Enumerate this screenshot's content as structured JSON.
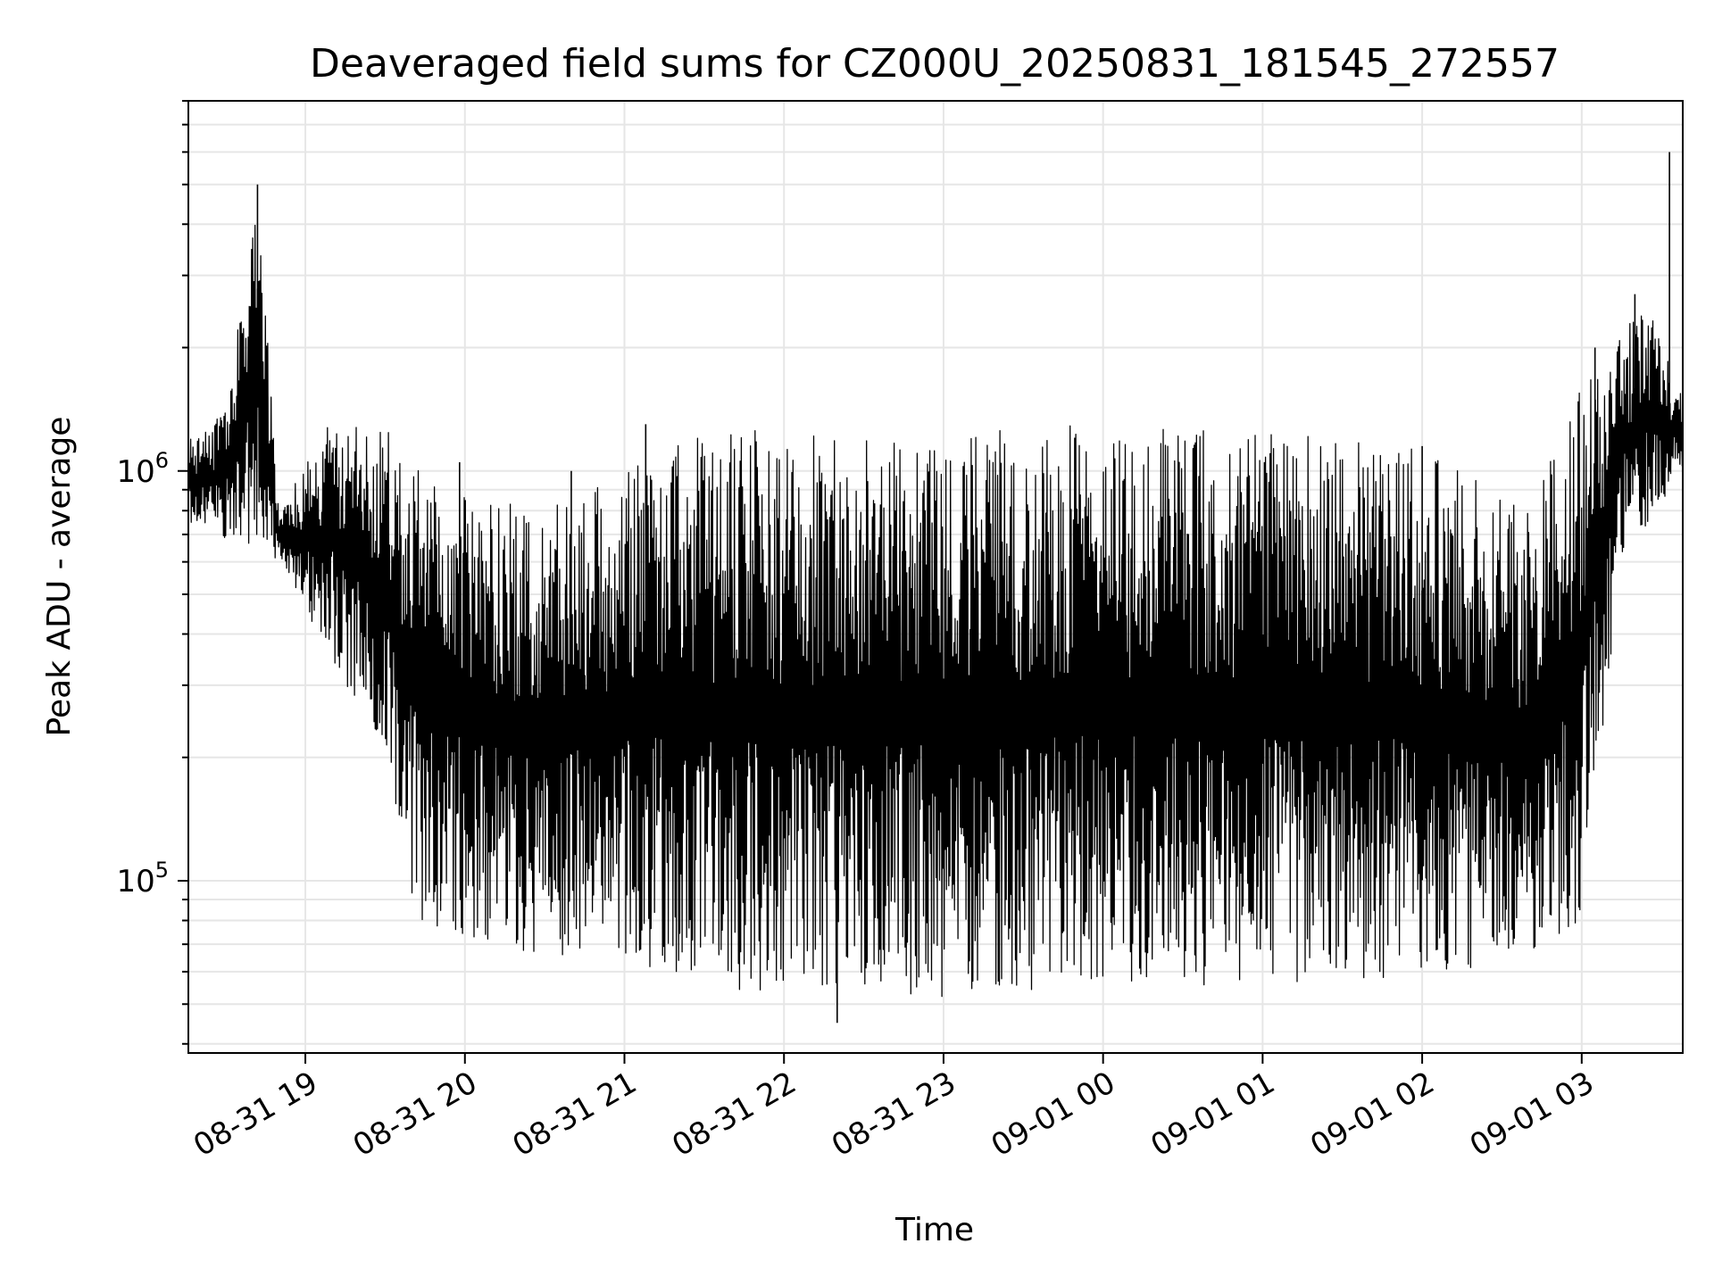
{
  "chart_data": {
    "type": "line",
    "title": "Deaveraged field sums for CZ000U_20250831_181545_272557",
    "xlabel": "Time",
    "ylabel": "Peak ADU - average",
    "y_scale": "log",
    "ylim": [
      38000,
      8000000
    ],
    "xlim": [
      "2025-08-31 18:16",
      "2025-09-01 03:38"
    ],
    "grid": true,
    "color": "#000000",
    "x_ticks": [
      {
        "t": "2025-08-31 19:00",
        "label": "08-31 19"
      },
      {
        "t": "2025-08-31 20:00",
        "label": "08-31 20"
      },
      {
        "t": "2025-08-31 21:00",
        "label": "08-31 21"
      },
      {
        "t": "2025-08-31 22:00",
        "label": "08-31 22"
      },
      {
        "t": "2025-08-31 23:00",
        "label": "08-31 23"
      },
      {
        "t": "2025-09-01 00:00",
        "label": "09-01 00"
      },
      {
        "t": "2025-09-01 01:00",
        "label": "09-01 01"
      },
      {
        "t": "2025-09-01 02:00",
        "label": "09-01 02"
      },
      {
        "t": "2025-09-01 03:00",
        "label": "09-01 03"
      }
    ],
    "y_ticks": [
      {
        "value": 100000,
        "base": "10",
        "exp": "5"
      },
      {
        "value": 1000000,
        "base": "10",
        "exp": "6"
      }
    ],
    "series": [
      {
        "upper_envelope": [
          {
            "t": "2025-08-31 18:16",
            "y": 1200000
          },
          {
            "t": "2025-08-31 18:30",
            "y": 1400000
          },
          {
            "t": "2025-08-31 18:42",
            "y": 5000000
          },
          {
            "t": "2025-08-31 18:50",
            "y": 800000
          },
          {
            "t": "2025-08-31 19:10",
            "y": 1350000
          },
          {
            "t": "2025-08-31 19:40",
            "y": 1200000
          },
          {
            "t": "2025-08-31 20:00",
            "y": 900000
          },
          {
            "t": "2025-08-31 20:30",
            "y": 800000
          },
          {
            "t": "2025-08-31 21:00",
            "y": 1000000
          },
          {
            "t": "2025-08-31 21:20",
            "y": 1300000
          },
          {
            "t": "2025-08-31 22:00",
            "y": 1250000
          },
          {
            "t": "2025-08-31 23:00",
            "y": 1250000
          },
          {
            "t": "2025-09-01 00:00",
            "y": 1300000
          },
          {
            "t": "2025-09-01 01:00",
            "y": 1250000
          },
          {
            "t": "2025-09-01 01:40",
            "y": 1200000
          },
          {
            "t": "2025-09-01 02:00",
            "y": 1150000
          },
          {
            "t": "2025-09-01 02:40",
            "y": 800000
          },
          {
            "t": "2025-09-01 03:05",
            "y": 2000000
          },
          {
            "t": "2025-09-01 03:25",
            "y": 2500000
          },
          {
            "t": "2025-09-01 03:38",
            "y": 1500000
          }
        ],
        "lower_envelope": [
          {
            "t": "2025-08-31 18:16",
            "y": 750000
          },
          {
            "t": "2025-08-31 18:50",
            "y": 600000
          },
          {
            "t": "2025-08-31 19:10",
            "y": 350000
          },
          {
            "t": "2025-08-31 19:30",
            "y": 200000
          },
          {
            "t": "2025-08-31 19:40",
            "y": 80000
          },
          {
            "t": "2025-08-31 20:30",
            "y": 65000
          },
          {
            "t": "2025-08-31 21:00",
            "y": 65000
          },
          {
            "t": "2025-08-31 21:30",
            "y": 52000
          },
          {
            "t": "2025-08-31 22:00",
            "y": 52000
          },
          {
            "t": "2025-08-31 23:00",
            "y": 52000
          },
          {
            "t": "2025-09-01 00:00",
            "y": 55000
          },
          {
            "t": "2025-09-01 01:00",
            "y": 55000
          },
          {
            "t": "2025-09-01 02:00",
            "y": 58000
          },
          {
            "t": "2025-09-01 02:40",
            "y": 65000
          },
          {
            "t": "2025-09-01 03:00",
            "y": 80000
          },
          {
            "t": "2025-09-01 03:15",
            "y": 600000
          },
          {
            "t": "2025-09-01 03:38",
            "y": 1000000
          }
        ],
        "spikes": [
          {
            "t": "2025-08-31 18:40",
            "y": 2500000
          },
          {
            "t": "2025-08-31 18:42",
            "y": 5000000
          },
          {
            "t": "2025-08-31 19:58",
            "y": 1050000
          },
          {
            "t": "2025-08-31 20:40",
            "y": 1000000
          },
          {
            "t": "2025-08-31 21:08",
            "y": 1300000
          },
          {
            "t": "2025-08-31 22:20",
            "y": 45000
          },
          {
            "t": "2025-09-01 02:00",
            "y": 1150000
          },
          {
            "t": "2025-09-01 03:05",
            "y": 2000000
          },
          {
            "t": "2025-09-01 03:20",
            "y": 2700000
          },
          {
            "t": "2025-09-01 03:33",
            "y": 6000000
          }
        ]
      }
    ]
  }
}
